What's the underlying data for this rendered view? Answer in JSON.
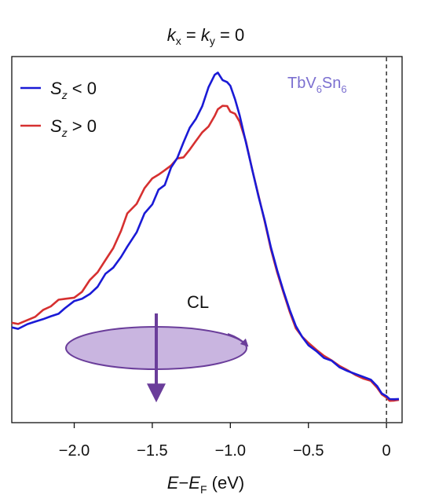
{
  "chart_data": {
    "type": "line",
    "title_parts": {
      "k": "k",
      "x_sub": "x",
      "eq1": " = ",
      "y_sub": "y",
      "eq2": " = 0"
    },
    "xlabel_parts": {
      "E": "E",
      "dash": "−",
      "EF": "E",
      "F_sub": "F",
      "unit": " (eV)"
    },
    "xlim": [
      -2.4,
      0.1
    ],
    "ylim": [
      0,
      1
    ],
    "x_ticks": [
      -2.0,
      -1.5,
      -1.0,
      -0.5,
      0
    ],
    "x_tick_labels": [
      "−2.0",
      "−1.5",
      "−1.0",
      "−0.5",
      "0"
    ],
    "y_ticks_shown": false,
    "grid": false,
    "legend_position": "top-left",
    "fermi_line_x": 0,
    "sample_label": {
      "main": "TbV",
      "sub1": "6",
      "mid": "Sn",
      "sub2": "6",
      "color": "#7b6fd0"
    },
    "annotation": {
      "text": "CL",
      "x": -1.32,
      "y": 0.34
    },
    "series": [
      {
        "name": "S_z < 0",
        "label_parts": {
          "S": "S",
          "sub": "z",
          "rel": " < 0"
        },
        "color": "#1a1ad6",
        "x": [
          -2.4,
          -2.36,
          -2.3,
          -2.25,
          -2.2,
          -2.15,
          -2.1,
          -2.06,
          -2.0,
          -1.95,
          -1.9,
          -1.85,
          -1.8,
          -1.75,
          -1.7,
          -1.66,
          -1.6,
          -1.55,
          -1.5,
          -1.46,
          -1.42,
          -1.38,
          -1.34,
          -1.3,
          -1.26,
          -1.22,
          -1.18,
          -1.14,
          -1.1,
          -1.08,
          -1.05,
          -1.02,
          -1.0,
          -0.97,
          -0.94,
          -0.9,
          -0.86,
          -0.82,
          -0.78,
          -0.74,
          -0.7,
          -0.66,
          -0.62,
          -0.58,
          -0.54,
          -0.5,
          -0.45,
          -0.4,
          -0.35,
          -0.3,
          -0.25,
          -0.2,
          -0.15,
          -0.1,
          -0.06,
          -0.03,
          0.0,
          0.02,
          0.05,
          0.08
        ],
        "y": [
          0.24,
          0.24,
          0.25,
          0.26,
          0.27,
          0.28,
          0.29,
          0.3,
          0.31,
          0.32,
          0.34,
          0.36,
          0.39,
          0.42,
          0.45,
          0.49,
          0.54,
          0.59,
          0.62,
          0.66,
          0.68,
          0.73,
          0.76,
          0.79,
          0.83,
          0.86,
          0.9,
          0.95,
          0.99,
          1.0,
          1.0,
          0.99,
          0.97,
          0.93,
          0.88,
          0.8,
          0.72,
          0.64,
          0.56,
          0.48,
          0.41,
          0.35,
          0.29,
          0.24,
          0.21,
          0.19,
          0.17,
          0.15,
          0.14,
          0.12,
          0.11,
          0.1,
          0.09,
          0.08,
          0.06,
          0.04,
          0.03,
          0.02,
          0.02,
          0.02
        ]
      },
      {
        "name": "S_z > 0",
        "label_parts": {
          "S": "S",
          "sub": "z",
          "rel": " > 0"
        },
        "color": "#d63030",
        "x": [
          -2.4,
          -2.36,
          -2.3,
          -2.25,
          -2.2,
          -2.15,
          -2.1,
          -2.06,
          -2.0,
          -1.95,
          -1.9,
          -1.85,
          -1.8,
          -1.75,
          -1.7,
          -1.66,
          -1.6,
          -1.55,
          -1.5,
          -1.46,
          -1.42,
          -1.38,
          -1.34,
          -1.3,
          -1.26,
          -1.22,
          -1.18,
          -1.14,
          -1.1,
          -1.08,
          -1.05,
          -1.02,
          -1.0,
          -0.97,
          -0.94,
          -0.9,
          -0.86,
          -0.82,
          -0.78,
          -0.74,
          -0.7,
          -0.66,
          -0.62,
          -0.58,
          -0.54,
          -0.5,
          -0.45,
          -0.4,
          -0.35,
          -0.3,
          -0.25,
          -0.2,
          -0.15,
          -0.1,
          -0.06,
          -0.03,
          0.0,
          0.02,
          0.05,
          0.08
        ],
        "y": [
          0.25,
          0.25,
          0.26,
          0.27,
          0.28,
          0.29,
          0.31,
          0.33,
          0.34,
          0.36,
          0.39,
          0.42,
          0.45,
          0.49,
          0.53,
          0.57,
          0.61,
          0.65,
          0.68,
          0.7,
          0.7,
          0.73,
          0.75,
          0.76,
          0.79,
          0.81,
          0.83,
          0.86,
          0.88,
          0.89,
          0.9,
          0.9,
          0.89,
          0.88,
          0.86,
          0.8,
          0.72,
          0.64,
          0.56,
          0.48,
          0.41,
          0.35,
          0.29,
          0.24,
          0.21,
          0.19,
          0.17,
          0.15,
          0.14,
          0.12,
          0.11,
          0.1,
          0.09,
          0.08,
          0.06,
          0.04,
          0.03,
          0.02,
          0.02,
          0.02
        ]
      }
    ]
  }
}
